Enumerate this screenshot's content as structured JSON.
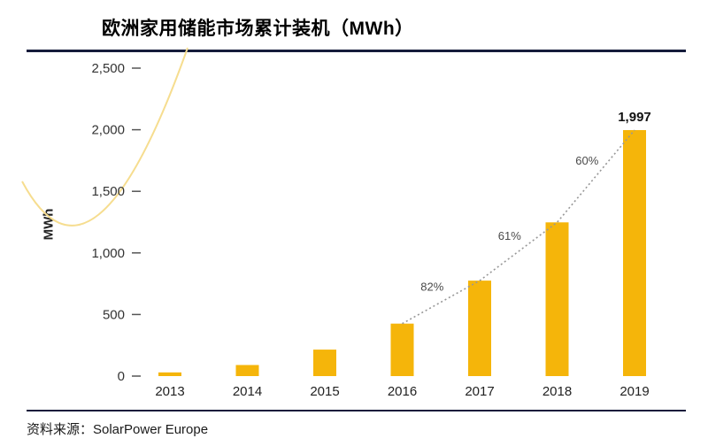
{
  "page": {
    "source_label": "资料来源：SolarPower Europe"
  },
  "colors": {
    "bar": "#F5B50A",
    "rule_line": "#151C3B",
    "decorative_curve": "#F6DD8F",
    "trend_line": "#979797",
    "axis_text": "#333333",
    "tick_mark": "#555555",
    "annotation_text": "#4a4a4a",
    "value_label_text": "#111111"
  },
  "chart_data": {
    "type": "bar",
    "title": "欧洲家用储能市场累计装机（MWh）",
    "ylabel": "MWh",
    "xlabel": "",
    "categories": [
      "2013",
      "2014",
      "2015",
      "2016",
      "2017",
      "2018",
      "2019"
    ],
    "values": [
      30,
      90,
      215,
      426,
      775,
      1248,
      1997
    ],
    "ylim": [
      0,
      2500
    ],
    "yticks": [
      0,
      500,
      1000,
      1500,
      2000,
      2500
    ],
    "ytick_labels": [
      "0",
      "500",
      "1,000",
      "1,500",
      "2,000",
      "2,500"
    ],
    "grid": false,
    "legend": false,
    "value_labels": [
      {
        "category": "2019",
        "label": "1,997"
      }
    ],
    "trendline": {
      "style": "dotted",
      "from": "2016",
      "to": "2019"
    },
    "growth_annotations": [
      {
        "from": "2016",
        "to": "2017",
        "label": "82%"
      },
      {
        "from": "2017",
        "to": "2018",
        "label": "61%"
      },
      {
        "from": "2018",
        "to": "2019",
        "label": "60%"
      }
    ]
  }
}
